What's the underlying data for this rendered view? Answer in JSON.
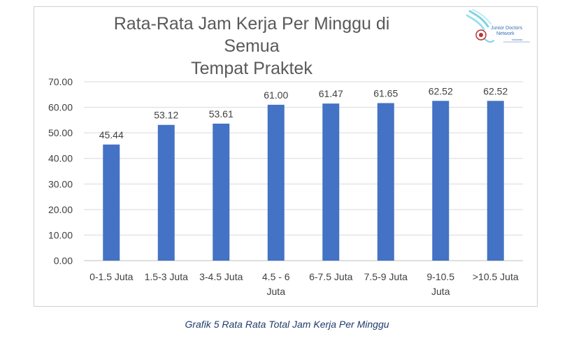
{
  "chart_data": {
    "type": "bar",
    "title_line1": "Rata-Rata Jam Kerja Per Minggu di Semua",
    "title_line2": "Tempat Praktek",
    "categories": [
      [
        "0-1.5 Juta"
      ],
      [
        "1.5-3 Juta"
      ],
      [
        "3-4.5 Juta"
      ],
      [
        "4.5 - 6",
        "Juta"
      ],
      [
        "6-7.5 Juta"
      ],
      [
        "7.5-9 Juta"
      ],
      [
        "9-10.5",
        "Juta"
      ],
      [
        ">10.5 Juta"
      ]
    ],
    "values": [
      45.44,
      53.12,
      53.61,
      61.0,
      61.47,
      61.65,
      62.52,
      62.52
    ],
    "value_labels": [
      "45.44",
      "53.12",
      "53.61",
      "61.00",
      "61.47",
      "61.65",
      "62.52",
      "62.52"
    ],
    "y_ticks": [
      "0.00",
      "10.00",
      "20.00",
      "30.00",
      "40.00",
      "50.00",
      "60.00",
      "70.00"
    ],
    "ylim": [
      0,
      70
    ],
    "grid": true,
    "bar_color": "#4472C4",
    "xlabel": "",
    "ylabel": ""
  },
  "logo": {
    "name": "Junior Doctors Network",
    "line1": "Junior Doctors",
    "line2": "Network",
    "line3": "Indonesia",
    "color": "#3a6fb5",
    "accent": "#7fd3e6"
  },
  "caption": "Grafik 5 Rata Rata Total Jam Kerja Per Minggu"
}
